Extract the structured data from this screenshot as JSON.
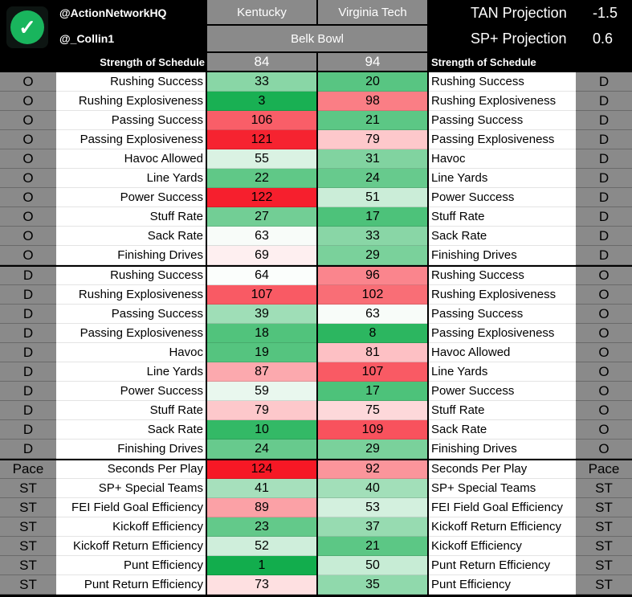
{
  "header": {
    "handle_primary": "@ActionNetworkHQ",
    "handle_secondary": "@_Collin1",
    "logo_icon": "checkmark-circle-icon",
    "team_left": "Kentucky",
    "team_right": "Virginia Tech",
    "bowl": "Belk Bowl",
    "projections": [
      {
        "label": "TAN Projection",
        "value": "-1.5"
      },
      {
        "label": "SP+ Projection",
        "value": "0.6"
      }
    ]
  },
  "sos": {
    "label_left": "Strength of Schedule",
    "label_right": "Strength of Schedule",
    "left": "84",
    "right": "94"
  },
  "rows": [
    {
      "side_l": "O",
      "label_l": "Rushing Success",
      "k": 33,
      "v": 20,
      "label_r": "Rushing Success",
      "side_r": "D"
    },
    {
      "side_l": "O",
      "label_l": "Rushing Explosiveness",
      "k": 3,
      "v": 98,
      "label_r": "Rushing Explosiveness",
      "side_r": "D"
    },
    {
      "side_l": "O",
      "label_l": "Passing Success",
      "k": 106,
      "v": 21,
      "label_r": "Passing Success",
      "side_r": "D"
    },
    {
      "side_l": "O",
      "label_l": "Passing Explosiveness",
      "k": 121,
      "v": 79,
      "label_r": "Passing Explosiveness",
      "side_r": "D"
    },
    {
      "side_l": "O",
      "label_l": "Havoc Allowed",
      "k": 55,
      "v": 31,
      "label_r": "Havoc",
      "side_r": "D"
    },
    {
      "side_l": "O",
      "label_l": "Line Yards",
      "k": 22,
      "v": 24,
      "label_r": "Line Yards",
      "side_r": "D"
    },
    {
      "side_l": "O",
      "label_l": "Power Success",
      "k": 122,
      "v": 51,
      "label_r": "Power Success",
      "side_r": "D"
    },
    {
      "side_l": "O",
      "label_l": "Stuff Rate",
      "k": 27,
      "v": 17,
      "label_r": "Stuff Rate",
      "side_r": "D"
    },
    {
      "side_l": "O",
      "label_l": "Sack Rate",
      "k": 63,
      "v": 33,
      "label_r": "Sack Rate",
      "side_r": "D"
    },
    {
      "side_l": "O",
      "label_l": "Finishing Drives",
      "k": 69,
      "v": 29,
      "label_r": "Finishing Drives",
      "side_r": "D"
    },
    {
      "side_l": "D",
      "label_l": "Rushing Success",
      "k": 64,
      "v": 96,
      "label_r": "Rushing Success",
      "side_r": "O"
    },
    {
      "side_l": "D",
      "label_l": "Rushing Explosiveness",
      "k": 107,
      "v": 102,
      "label_r": "Rushing Explosiveness",
      "side_r": "O"
    },
    {
      "side_l": "D",
      "label_l": "Passing Success",
      "k": 39,
      "v": 63,
      "label_r": "Passing Success",
      "side_r": "O"
    },
    {
      "side_l": "D",
      "label_l": "Passing Explosiveness",
      "k": 18,
      "v": 8,
      "label_r": "Passing Explosiveness",
      "side_r": "O"
    },
    {
      "side_l": "D",
      "label_l": "Havoc",
      "k": 19,
      "v": 81,
      "label_r": "Havoc Allowed",
      "side_r": "O"
    },
    {
      "side_l": "D",
      "label_l": "Line Yards",
      "k": 87,
      "v": 107,
      "label_r": "Line Yards",
      "side_r": "O"
    },
    {
      "side_l": "D",
      "label_l": "Power Success",
      "k": 59,
      "v": 17,
      "label_r": "Power Success",
      "side_r": "O"
    },
    {
      "side_l": "D",
      "label_l": "Stuff Rate",
      "k": 79,
      "v": 75,
      "label_r": "Stuff Rate",
      "side_r": "O"
    },
    {
      "side_l": "D",
      "label_l": "Sack Rate",
      "k": 10,
      "v": 109,
      "label_r": "Sack Rate",
      "side_r": "O"
    },
    {
      "side_l": "D",
      "label_l": "Finishing Drives",
      "k": 24,
      "v": 29,
      "label_r": "Finishing Drives",
      "side_r": "O"
    },
    {
      "side_l": "Pace",
      "label_l": "Seconds Per Play",
      "k": 124,
      "v": 92,
      "label_r": "Seconds Per Play",
      "side_r": "Pace"
    },
    {
      "side_l": "ST",
      "label_l": "SP+ Special Teams",
      "k": 41,
      "v": 40,
      "label_r": "SP+ Special Teams",
      "side_r": "ST"
    },
    {
      "side_l": "ST",
      "label_l": "FEI Field Goal Efficiency",
      "k": 89,
      "v": 53,
      "label_r": "FEI Field Goal Efficiency",
      "side_r": "ST"
    },
    {
      "side_l": "ST",
      "label_l": "Kickoff Efficiency",
      "k": 23,
      "v": 37,
      "label_r": "Kickoff Return Efficiency",
      "side_r": "ST"
    },
    {
      "side_l": "ST",
      "label_l": "Kickoff Return Efficiency",
      "k": 52,
      "v": 21,
      "label_r": "Kickoff Efficiency",
      "side_r": "ST"
    },
    {
      "side_l": "ST",
      "label_l": "Punt Efficiency",
      "k": 1,
      "v": 50,
      "label_r": "Punt Return Efficiency",
      "side_r": "ST"
    },
    {
      "side_l": "ST",
      "label_l": "Punt Return Efficiency",
      "k": 73,
      "v": 35,
      "label_r": "Punt Efficiency",
      "side_r": "ST"
    }
  ],
  "colors": {
    "header_gray": "#8a8a8a",
    "best_green": "#12ad4d",
    "mid_white": "#ffffff",
    "worst_red": "#f5000f"
  },
  "scale": {
    "best": 1,
    "mid": 65,
    "worst": 130
  }
}
